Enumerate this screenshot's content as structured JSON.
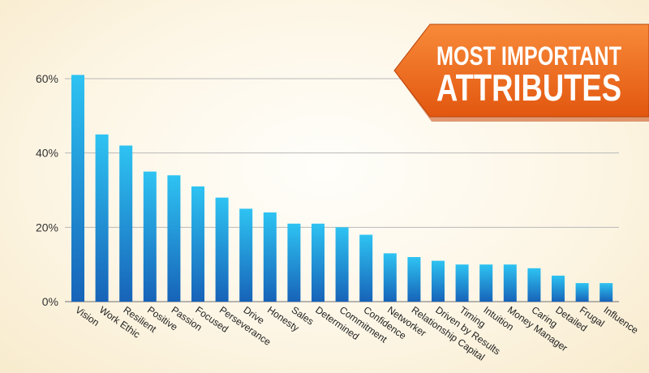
{
  "chart_data": {
    "type": "bar",
    "title": "MOST IMPORTANT ATTRIBUTES",
    "title_lines": [
      "MOST IMPORTANT",
      "ATTRIBUTES"
    ],
    "categories": [
      "Vision",
      "Work Ethic",
      "Resilient",
      "Positive",
      "Passion",
      "Focused",
      "Perseverance",
      "Drive",
      "Honesty",
      "Sales",
      "Determined",
      "Commitment",
      "Confidence",
      "Networker",
      "Relationship Capital",
      "Driven by Results",
      "Timing",
      "Intuition",
      "Money Manager",
      "Caring",
      "Detailed",
      "Frugal",
      "Influence"
    ],
    "values": [
      61,
      45,
      42,
      35,
      34,
      31,
      28,
      25,
      24,
      21,
      21,
      20,
      18,
      13,
      12,
      11,
      10,
      10,
      10,
      9,
      7,
      5,
      5
    ],
    "ylim": [
      0,
      60
    ],
    "yticks": [
      0,
      20,
      40,
      60
    ],
    "ytick_labels": [
      "0%",
      "20%",
      "40%",
      "60%"
    ],
    "xlabel": "",
    "ylabel": "",
    "grid": true,
    "colors": {
      "bar_top": "#2ec3f2",
      "bar_bottom": "#1763b8",
      "badge": "#f16a1c",
      "badge_dark": "#c9480c"
    }
  }
}
